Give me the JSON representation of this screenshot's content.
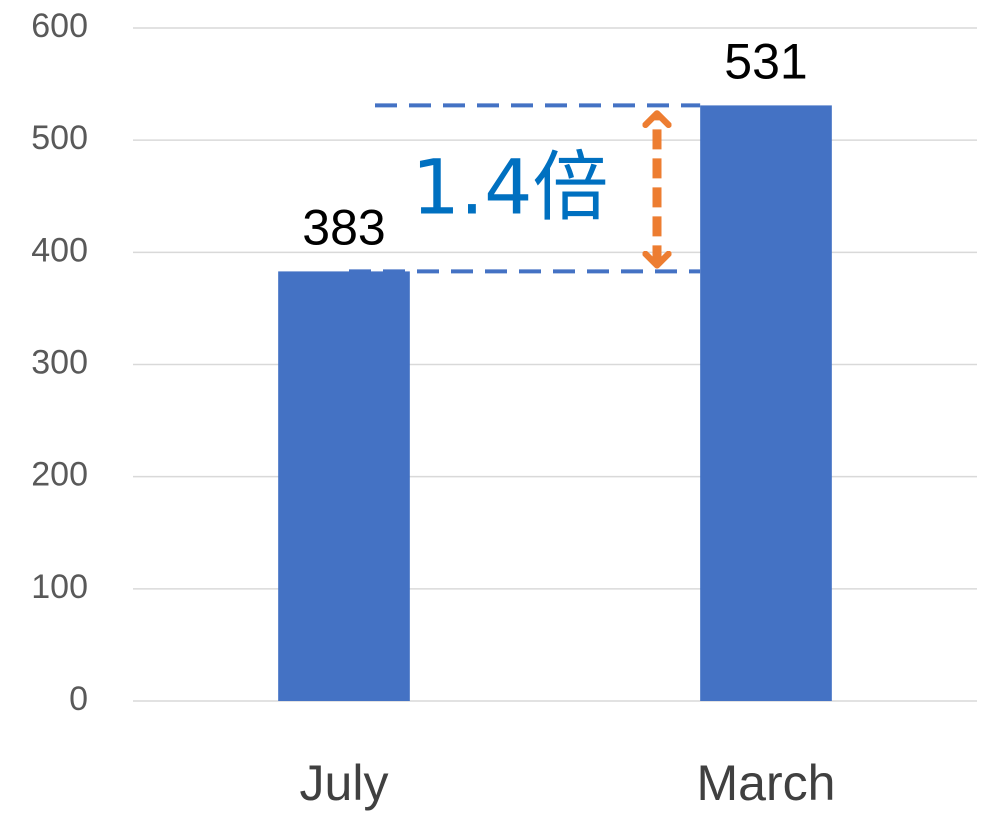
{
  "chart_data": {
    "type": "bar",
    "categories": [
      "July",
      "March"
    ],
    "values": [
      383,
      531
    ],
    "color": "#4472c4",
    "ylim": [
      0,
      600
    ],
    "yticks": [
      0,
      100,
      200,
      300,
      400,
      500,
      600
    ],
    "grid": true,
    "annotation": "1.4倍",
    "annotation_color": "#0070c0",
    "arrow_color": "#ed7d31"
  }
}
